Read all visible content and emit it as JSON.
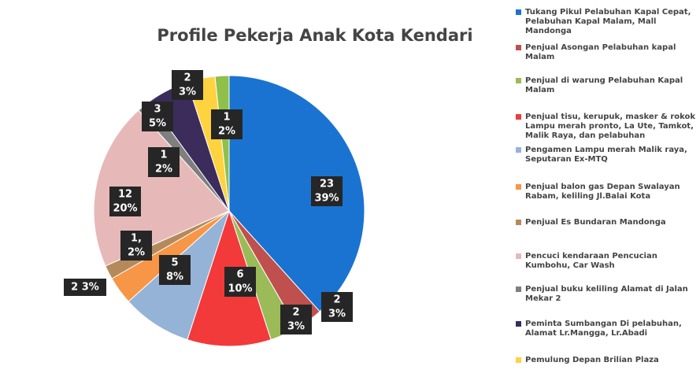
{
  "chart_data": {
    "type": "pie",
    "title": "Profile Pekerja Anak Kota Kendari",
    "categories": [
      "Tukang Pikul Pelabuhan Kapal Cepat, Pelabuhan Kapal Malam, Mall Mandonga",
      "Penjual Asongan Pelabuhan kapal Malam",
      "Penjual di warung Pelabuhan Kapal Malam",
      "Penjual tisu, kerupuk, masker & rokok Lampu merah pronto, La Ute, Tamkot, Malik Raya, dan pelabuhan",
      "Pengamen Lampu merah Malik raya, Seputaran Ex-MTQ",
      "Penjual balon gas Depan Swalayan Rabam, keliling Jl.Balai Kota",
      "Penjual Es Bundaran Mandonga",
      "Pencuci kendaraan Pencucian Kumbohu, Car Wash",
      "Penjual buku keliling Alamat di Jalan Mekar 2",
      "Peminta Sumbangan Di pelabuhan, Alamat Lr.Mangga, Lr.Abadi",
      "Pemulung Depan Brilian Plaza",
      null
    ],
    "values": [
      23,
      2,
      2,
      6,
      5,
      2,
      1,
      12,
      1,
      3,
      2,
      1
    ],
    "value_labels": [
      [
        "23",
        "39%"
      ],
      [
        "2",
        "3%"
      ],
      [
        "2",
        "3%"
      ],
      [
        "6",
        "10%"
      ],
      [
        "5",
        "8%"
      ],
      [
        "2 3%"
      ],
      [
        "1,",
        "2%"
      ],
      [
        "12",
        "20%"
      ],
      [
        "1",
        "2%"
      ],
      [
        "3",
        "5%"
      ],
      [
        "2",
        "3%"
      ],
      [
        "1",
        "2%"
      ]
    ],
    "colors": [
      "#1a73d1",
      "#c0504d",
      "#9bbb59",
      "#f23a3a",
      "#95b3d7",
      "#f79646",
      "#b58a5a",
      "#e6b9b8",
      "#7f7f7f",
      "#3b2c5c",
      "#ffd23f",
      "#8fc04a"
    ]
  }
}
